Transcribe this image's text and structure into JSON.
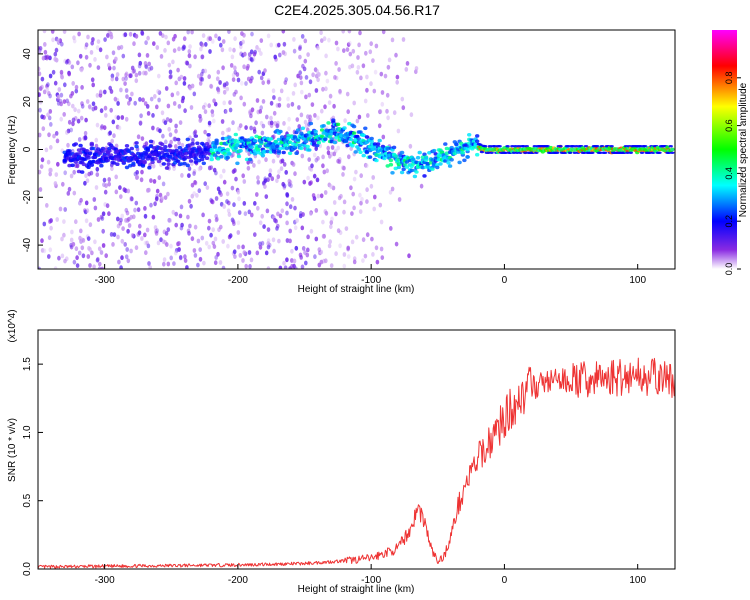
{
  "title": "C2E4.2025.305.04.56.R17",
  "chart_data": [
    {
      "type": "heatmap",
      "xlabel": "Height of straight line (km)",
      "ylabel": "Frequency (Hz)",
      "xlim": [
        -350,
        128
      ],
      "ylim": [
        -50,
        50
      ],
      "xticks": [
        -300,
        -200,
        -100,
        0,
        100
      ],
      "yticks": [
        -40,
        -20,
        0,
        20,
        40
      ],
      "colorbar": {
        "label": "Normalized spectral amplitude",
        "range": [
          0,
          1
        ],
        "ticks": [
          "0.0",
          "0.2",
          "0.4",
          "0.6",
          "0.8"
        ],
        "colors": [
          "#ffffff",
          "#8a2be2",
          "#0000ff",
          "#00ffff",
          "#00ff00",
          "#ffff00",
          "#ff0000",
          "#ff00ff"
        ]
      },
      "signal_centerline": {
        "height_km": [
          -330,
          -300,
          -250,
          -200,
          -150,
          -125,
          -110,
          -100,
          -85,
          -75,
          -65,
          -50,
          -35,
          -25,
          -15,
          0,
          50,
          128
        ],
        "frequency_hz": [
          -3,
          -3,
          -2,
          1,
          4,
          7,
          4,
          1,
          -3,
          -6,
          -6,
          -4,
          0,
          2,
          0,
          0,
          0,
          0
        ]
      }
    },
    {
      "type": "line",
      "xlabel": "Height of straight line (km)",
      "ylabel": "SNR (10 * v/v)",
      "y_multiplier": "(x10^4)",
      "xlim": [
        -350,
        128
      ],
      "ylim": [
        0,
        1.75
      ],
      "xticks": [
        -300,
        -200,
        -100,
        0,
        100
      ],
      "yticks": [
        "0.0",
        "0.5",
        "1.0",
        "1.5"
      ],
      "series": [
        {
          "name": "SNR",
          "color": "#ee3333",
          "x": [
            -350,
            -300,
            -250,
            -200,
            -150,
            -120,
            -100,
            -80,
            -70,
            -65,
            -60,
            -55,
            -50,
            -45,
            -40,
            -35,
            -30,
            -25,
            -20,
            -10,
            0,
            10,
            20,
            30,
            40,
            60,
            80,
            100,
            128
          ],
          "y": [
            0.015,
            0.02,
            0.025,
            0.03,
            0.04,
            0.06,
            0.08,
            0.15,
            0.3,
            0.45,
            0.35,
            0.15,
            0.05,
            0.1,
            0.25,
            0.45,
            0.6,
            0.7,
            0.8,
            0.95,
            1.1,
            1.25,
            1.32,
            1.37,
            1.38,
            1.38,
            1.4,
            1.42,
            1.38
          ]
        }
      ]
    }
  ]
}
